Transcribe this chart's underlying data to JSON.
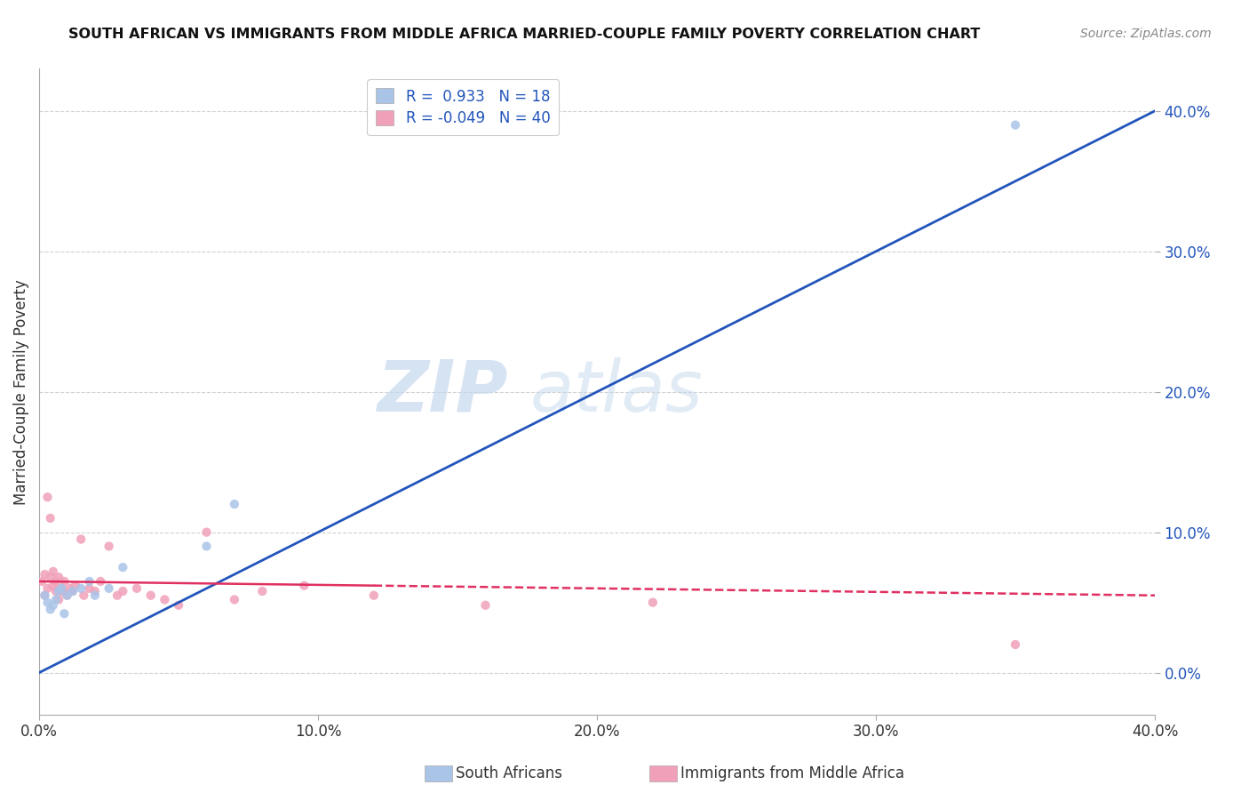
{
  "title": "SOUTH AFRICAN VS IMMIGRANTS FROM MIDDLE AFRICA MARRIED-COUPLE FAMILY POVERTY CORRELATION CHART",
  "source": "Source: ZipAtlas.com",
  "ylabel": "Married-Couple Family Poverty",
  "legend_label_blue": "South Africans",
  "legend_label_pink": "Immigrants from Middle Africa",
  "R_blue": 0.933,
  "N_blue": 18,
  "R_pink": -0.049,
  "N_pink": 40,
  "color_blue": "#aac4e8",
  "color_pink": "#f0a0b8",
  "line_color_blue": "#2255bb",
  "line_color_pink": "#e03060",
  "watermark_zip": "ZIP",
  "watermark_atlas": "atlas",
  "background_color": "#ffffff",
  "grid_color": "#cccccc",
  "xlim": [
    0.0,
    0.4
  ],
  "ylim": [
    -0.03,
    0.43
  ],
  "yticks": [
    0.0,
    0.1,
    0.2,
    0.3,
    0.4
  ],
  "xticks": [
    0.0,
    0.1,
    0.2,
    0.3,
    0.4
  ],
  "blue_scatter_x": [
    0.002,
    0.003,
    0.004,
    0.005,
    0.006,
    0.007,
    0.008,
    0.009,
    0.01,
    0.012,
    0.015,
    0.018,
    0.02,
    0.025,
    0.03,
    0.06,
    0.07,
    0.35
  ],
  "blue_scatter_y": [
    0.055,
    0.05,
    0.045,
    0.048,
    0.052,
    0.058,
    0.06,
    0.042,
    0.055,
    0.058,
    0.06,
    0.065,
    0.055,
    0.06,
    0.075,
    0.09,
    0.12,
    0.39
  ],
  "pink_scatter_x": [
    0.001,
    0.002,
    0.002,
    0.003,
    0.003,
    0.004,
    0.004,
    0.005,
    0.005,
    0.006,
    0.006,
    0.007,
    0.007,
    0.008,
    0.008,
    0.009,
    0.01,
    0.011,
    0.012,
    0.013,
    0.015,
    0.016,
    0.018,
    0.02,
    0.022,
    0.025,
    0.028,
    0.03,
    0.035,
    0.04,
    0.045,
    0.05,
    0.06,
    0.07,
    0.08,
    0.095,
    0.12,
    0.16,
    0.22,
    0.35
  ],
  "pink_scatter_y": [
    0.065,
    0.055,
    0.07,
    0.06,
    0.125,
    0.068,
    0.11,
    0.062,
    0.072,
    0.058,
    0.065,
    0.052,
    0.068,
    0.06,
    0.058,
    0.065,
    0.055,
    0.06,
    0.058,
    0.062,
    0.095,
    0.055,
    0.06,
    0.058,
    0.065,
    0.09,
    0.055,
    0.058,
    0.06,
    0.055,
    0.052,
    0.048,
    0.1,
    0.052,
    0.058,
    0.062,
    0.055,
    0.048,
    0.05,
    0.02
  ],
  "blue_line_x": [
    0.0,
    0.4
  ],
  "blue_line_y": [
    0.0,
    0.4
  ],
  "pink_line_x": [
    0.0,
    0.4
  ],
  "pink_line_y": [
    0.065,
    0.055
  ]
}
